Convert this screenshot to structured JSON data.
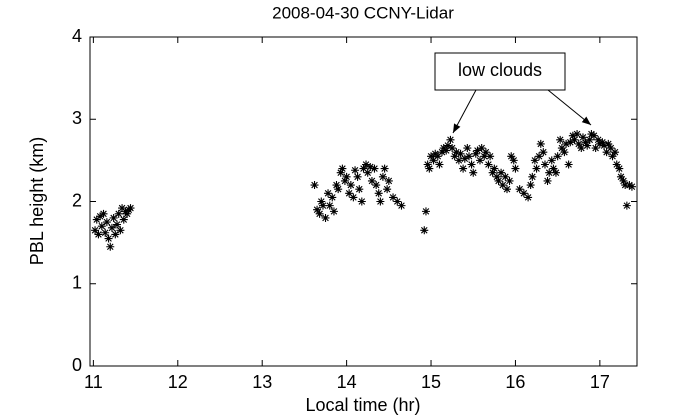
{
  "chart_data": {
    "type": "scatter",
    "title": "2008-04-30 CCNY-Lidar",
    "x_label": "Local time (hr)",
    "y_label": "PBL height (km)",
    "annotation": "low clouds",
    "color": "#000000",
    "marker": "*",
    "grid": false,
    "xlim": [
      10.96,
      17.44
    ],
    "ylim": [
      0,
      4
    ],
    "xticks": [
      11,
      12,
      13,
      14,
      15,
      16,
      17
    ],
    "yticks": [
      0,
      1,
      2,
      3,
      4
    ],
    "series": [
      {
        "name": "PBL height",
        "x": [
          11.02,
          11.04,
          11.06,
          11.08,
          11.1,
          11.12,
          11.14,
          11.16,
          11.18,
          11.2,
          11.22,
          11.24,
          11.26,
          11.28,
          11.3,
          11.32,
          11.34,
          11.36,
          11.38,
          11.4,
          11.42,
          11.44,
          13.62,
          13.65,
          13.68,
          13.7,
          13.72,
          13.75,
          13.78,
          13.8,
          13.83,
          13.85,
          13.88,
          13.9,
          13.93,
          13.95,
          13.98,
          14.0,
          14.03,
          14.05,
          14.08,
          14.1,
          14.13,
          14.15,
          14.18,
          14.2,
          14.23,
          14.25,
          14.28,
          14.3,
          14.33,
          14.35,
          14.38,
          14.4,
          14.43,
          14.45,
          14.48,
          14.5,
          14.55,
          14.6,
          14.65,
          14.92,
          14.94,
          14.96,
          14.98,
          15.0,
          15.03,
          15.05,
          15.08,
          15.1,
          15.13,
          15.15,
          15.18,
          15.2,
          15.23,
          15.25,
          15.28,
          15.3,
          15.33,
          15.35,
          15.38,
          15.4,
          15.43,
          15.45,
          15.48,
          15.5,
          15.53,
          15.55,
          15.58,
          15.6,
          15.63,
          15.65,
          15.68,
          15.7,
          15.73,
          15.75,
          15.78,
          15.8,
          15.83,
          15.85,
          15.88,
          15.9,
          15.93,
          15.95,
          15.98,
          16.0,
          16.05,
          16.1,
          16.15,
          16.18,
          16.2,
          16.23,
          16.25,
          16.28,
          16.3,
          16.33,
          16.35,
          16.38,
          16.4,
          16.43,
          16.45,
          16.48,
          16.5,
          16.53,
          16.55,
          16.58,
          16.6,
          16.63,
          16.65,
          16.68,
          16.7,
          16.73,
          16.75,
          16.78,
          16.8,
          16.83,
          16.85,
          16.88,
          16.9,
          16.93,
          16.95,
          16.98,
          17.0,
          17.03,
          17.05,
          17.08,
          17.1,
          17.13,
          17.15,
          17.18,
          17.2,
          17.23,
          17.25,
          17.28,
          17.3,
          17.32,
          17.35,
          17.38
        ],
        "y": [
          1.65,
          1.78,
          1.6,
          1.82,
          1.7,
          1.85,
          1.62,
          1.75,
          1.55,
          1.45,
          1.68,
          1.8,
          1.6,
          1.72,
          1.85,
          1.65,
          1.92,
          1.78,
          1.88,
          1.85,
          1.9,
          1.92,
          2.2,
          1.9,
          1.85,
          2.0,
          1.95,
          1.8,
          2.1,
          1.95,
          2.05,
          1.88,
          2.2,
          2.15,
          2.35,
          2.4,
          2.25,
          2.3,
          2.1,
          2.2,
          2.05,
          2.38,
          2.3,
          2.15,
          2.0,
          2.4,
          2.45,
          2.35,
          2.42,
          2.25,
          2.4,
          2.2,
          2.1,
          2.0,
          2.3,
          2.4,
          2.15,
          2.25,
          2.05,
          2.0,
          1.95,
          1.65,
          1.88,
          2.45,
          2.4,
          2.55,
          2.5,
          2.58,
          2.55,
          2.45,
          2.6,
          2.65,
          2.62,
          2.68,
          2.75,
          2.65,
          2.55,
          2.6,
          2.5,
          2.58,
          2.4,
          2.52,
          2.65,
          2.55,
          2.45,
          2.35,
          2.58,
          2.62,
          2.5,
          2.65,
          2.55,
          2.6,
          2.45,
          2.55,
          2.35,
          2.4,
          2.3,
          2.25,
          2.35,
          2.2,
          2.3,
          2.15,
          2.25,
          2.55,
          2.5,
          2.4,
          2.15,
          2.1,
          2.05,
          2.2,
          2.3,
          2.5,
          2.4,
          2.55,
          2.7,
          2.6,
          2.45,
          2.25,
          2.35,
          2.5,
          2.4,
          2.35,
          2.55,
          2.75,
          2.65,
          2.6,
          2.7,
          2.45,
          2.72,
          2.8,
          2.75,
          2.82,
          2.7,
          2.65,
          2.78,
          2.72,
          2.68,
          2.75,
          2.82,
          2.8,
          2.65,
          2.75,
          2.7,
          2.72,
          2.68,
          2.6,
          2.7,
          2.65,
          2.55,
          2.6,
          2.45,
          2.4,
          2.3,
          2.25,
          2.2,
          1.95,
          2.2,
          2.18
        ]
      }
    ]
  }
}
